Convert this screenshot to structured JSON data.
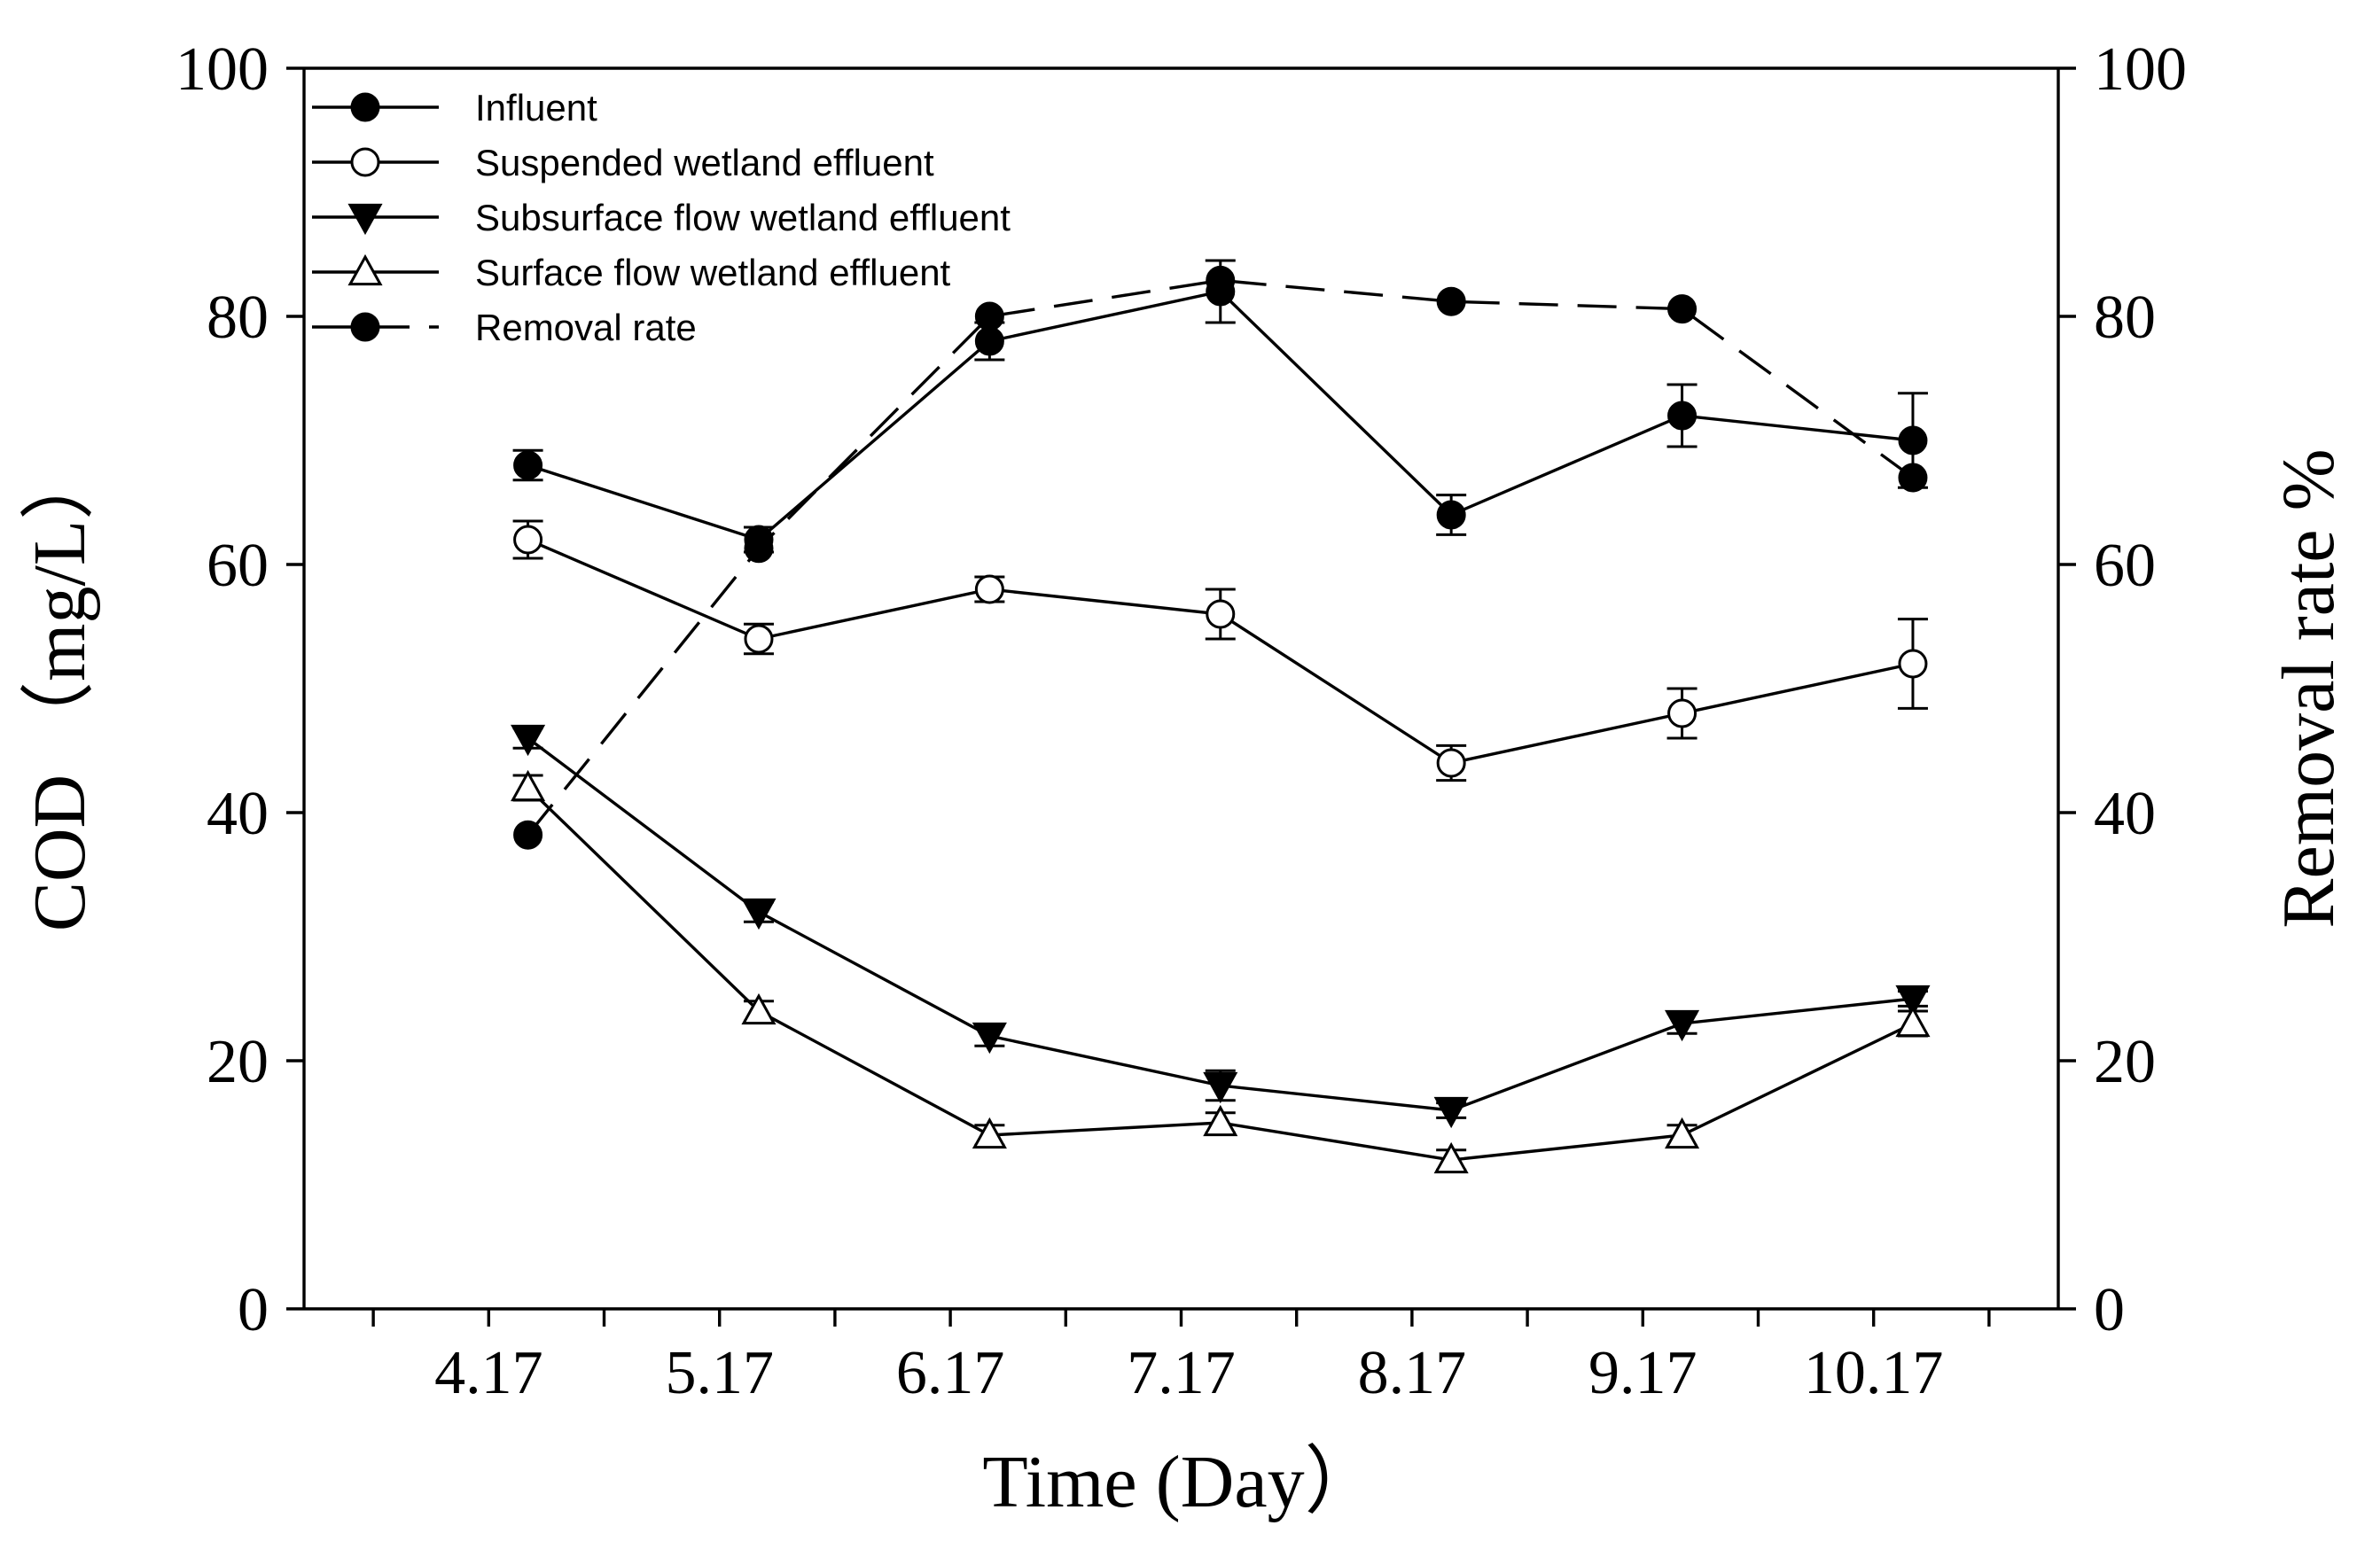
{
  "chart_data": {
    "type": "line",
    "title": "",
    "xlabel": "Time (Day）",
    "ylabel": "COD （mg/L）",
    "y2label": "Removal rate %",
    "categories": [
      "4.17",
      "5.17",
      "6.17",
      "7.17",
      "8.17",
      "9.17",
      "10.17"
    ],
    "xlim": [
      3.2,
      10.8
    ],
    "x_ticks": [
      4,
      5,
      6,
      7,
      8,
      9,
      10
    ],
    "ylim": [
      0,
      100
    ],
    "y_ticks": [
      0,
      20,
      40,
      60,
      80,
      100
    ],
    "y2lim": [
      0,
      100
    ],
    "y2_ticks": [
      0,
      20,
      40,
      60,
      80,
      100
    ],
    "grid": false,
    "legend_position": "top-left",
    "series": [
      {
        "name": "Influent",
        "axis": "left",
        "marker": "filled-circle",
        "line": "solid",
        "x": [
          4.17,
          5.17,
          6.17,
          7.17,
          8.17,
          9.17,
          10.17
        ],
        "values": [
          68,
          62,
          78,
          82,
          64,
          72,
          70
        ],
        "errors": [
          1.2,
          1.0,
          1.5,
          2.5,
          1.6,
          2.5,
          3.8
        ]
      },
      {
        "name": "Suspended wetland  effluent",
        "axis": "left",
        "marker": "open-circle",
        "line": "solid",
        "x": [
          4.17,
          5.17,
          6.17,
          7.17,
          8.17,
          9.17,
          10.17
        ],
        "values": [
          62,
          54,
          58,
          56,
          44,
          48,
          52
        ],
        "errors": [
          1.5,
          1.2,
          1.0,
          2.0,
          1.4,
          2.0,
          3.6
        ]
      },
      {
        "name": "Subsurface flow wetland effluent",
        "axis": "left",
        "marker": "filled-triangle-down",
        "line": "solid",
        "x": [
          4.17,
          5.17,
          6.17,
          7.17,
          8.17,
          9.17,
          10.17
        ],
        "values": [
          46,
          32,
          22,
          18,
          16,
          23,
          25
        ],
        "errors": [
          0.8,
          0.8,
          0.8,
          1.2,
          0.6,
          0.8,
          0.6
        ]
      },
      {
        "name": "Surface flow wetland  effluent",
        "axis": "left",
        "marker": "open-triangle-up",
        "line": "solid",
        "x": [
          4.17,
          5.17,
          6.17,
          7.17,
          8.17,
          9.17,
          10.17
        ],
        "values": [
          42,
          24,
          14,
          15,
          12,
          14,
          23
        ],
        "errors": [
          1.0,
          0.8,
          0.8,
          0.8,
          0.8,
          0.8,
          1.0
        ]
      },
      {
        "name": "Removal rate",
        "axis": "right",
        "marker": "filled-circle",
        "line": "dashed",
        "x": [
          4.17,
          5.17,
          6.17,
          7.17,
          8.17,
          9.17,
          10.17
        ],
        "values": [
          38.2,
          61.3,
          80,
          82.9,
          81.2,
          80.6,
          67
        ],
        "errors": null
      }
    ]
  }
}
